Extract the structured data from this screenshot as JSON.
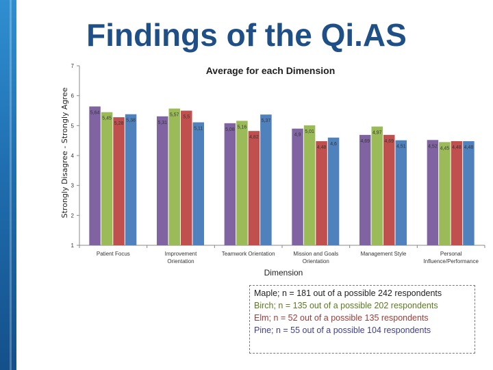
{
  "slide": {
    "title": "Findings of the Qi.AS"
  },
  "colors": {
    "maple": "#8064a2",
    "birch": "#9bbb59",
    "elm": "#c0504d",
    "pine": "#4f81bd",
    "title": "#1e4f86"
  },
  "legend": [
    {
      "text": "Maple; n = 181 out of a possible 242 respondents",
      "color": "#1f1f1f"
    },
    {
      "text": "Birch; n = 135 out of a possible 202 respondents",
      "color": "#5a7a1e"
    },
    {
      "text": "Elm; n = 52 out of a possible 135 respondents",
      "color": "#a33a36"
    },
    {
      "text": "Pine; n = 55 out of a possible 104 respondents",
      "color": "#3f3f8f"
    }
  ],
  "chart_data": {
    "type": "bar",
    "title": "Average for each Dimension",
    "xlabel": "Dimension",
    "ylabel": "Strongly Disagree - Strongly Agree",
    "ylim": [
      1,
      7
    ],
    "yticks": [
      "1",
      "2",
      "3",
      "4",
      "5",
      "6",
      "7"
    ],
    "categories": [
      [
        "Patient Focus"
      ],
      [
        "Improvement",
        "Orientation"
      ],
      [
        "Teamwork Orientation"
      ],
      [
        "Mission and Goals",
        "Orientation"
      ],
      [
        "Management Style"
      ],
      [
        "Personal",
        "Influence/Performance"
      ]
    ],
    "series": [
      {
        "name": "Maple",
        "values": [
          5.64,
          5.31,
          5.08,
          4.9,
          4.69,
          4.52
        ],
        "labels": [
          "5,64",
          "5,31",
          "5,08",
          "4,9",
          "4,69",
          "4,52"
        ]
      },
      {
        "name": "Birch",
        "values": [
          5.45,
          5.57,
          5.16,
          5.01,
          4.97,
          4.45
        ],
        "labels": [
          "5,45",
          "5,57",
          "5,16",
          "5,01",
          "4,97",
          "4,45"
        ]
      },
      {
        "name": "Elm",
        "values": [
          5.28,
          5.5,
          4.82,
          4.48,
          4.69,
          4.48
        ],
        "labels": [
          "5,28",
          "5,5",
          "4,82",
          "4,48",
          "4,69",
          "4,48"
        ]
      },
      {
        "name": "Pine",
        "values": [
          5.38,
          5.11,
          5.37,
          4.6,
          4.51,
          4.48
        ],
        "labels": [
          "5,38",
          "5,11",
          "5,37",
          "4,6",
          "4,51",
          "4,48"
        ]
      }
    ]
  }
}
